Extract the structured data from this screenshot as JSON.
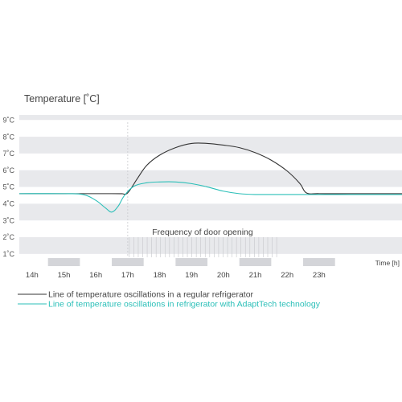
{
  "colors": {
    "regular": "#333333",
    "adapttech": "#2bbfb8",
    "band": "#e8e9ec",
    "door_block": "#d4d5d9",
    "text": "#444444"
  },
  "chart_data": {
    "type": "line",
    "title": "Temperature [˚C]",
    "xlabel": "Time [h]",
    "x_ticks": [
      "14h",
      "15h",
      "16h",
      "17h",
      "18h",
      "19h",
      "20h",
      "21h",
      "22h",
      "23h"
    ],
    "y_ticks": [
      "1˚C",
      "2˚C",
      "3˚C",
      "4˚C",
      "5˚C",
      "6˚C",
      "7˚C",
      "8˚C",
      "9˚C"
    ],
    "xlim": [
      13.6,
      25.6
    ],
    "ylim": [
      0.8,
      9.3
    ],
    "annotation": "Frequency of door opening",
    "door_opening_range": [
      17.0,
      21.8
    ],
    "series": [
      {
        "name": "Line of temperature oscillations in a regular refrigerator",
        "x": [
          13.6,
          16.5,
          16.8,
          17.0,
          17.3,
          17.6,
          18.0,
          18.5,
          19.0,
          19.5,
          20.0,
          20.5,
          21.0,
          21.5,
          22.0,
          22.4,
          22.6,
          23.0,
          24.0,
          25.6
        ],
        "y": [
          4.6,
          4.6,
          4.6,
          4.65,
          5.5,
          6.3,
          6.9,
          7.35,
          7.6,
          7.6,
          7.5,
          7.35,
          7.05,
          6.6,
          5.95,
          5.2,
          4.65,
          4.6,
          4.6,
          4.6
        ]
      },
      {
        "name": "Line of temperature oscillations in refrigerator with AdaptTech technology",
        "x": [
          13.6,
          15.0,
          15.6,
          16.0,
          16.3,
          16.5,
          16.7,
          16.9,
          17.2,
          17.6,
          18.0,
          18.5,
          19.0,
          19.5,
          20.0,
          20.5,
          21.0,
          22.0,
          23.0,
          25.6
        ],
        "y": [
          4.6,
          4.6,
          4.55,
          4.2,
          3.75,
          3.5,
          3.85,
          4.5,
          5.05,
          5.25,
          5.3,
          5.3,
          5.2,
          5.0,
          4.75,
          4.6,
          4.55,
          4.55,
          4.55,
          4.55
        ]
      }
    ],
    "legend_placement": "bottom-left",
    "grid": "alternating horizontal bands"
  }
}
